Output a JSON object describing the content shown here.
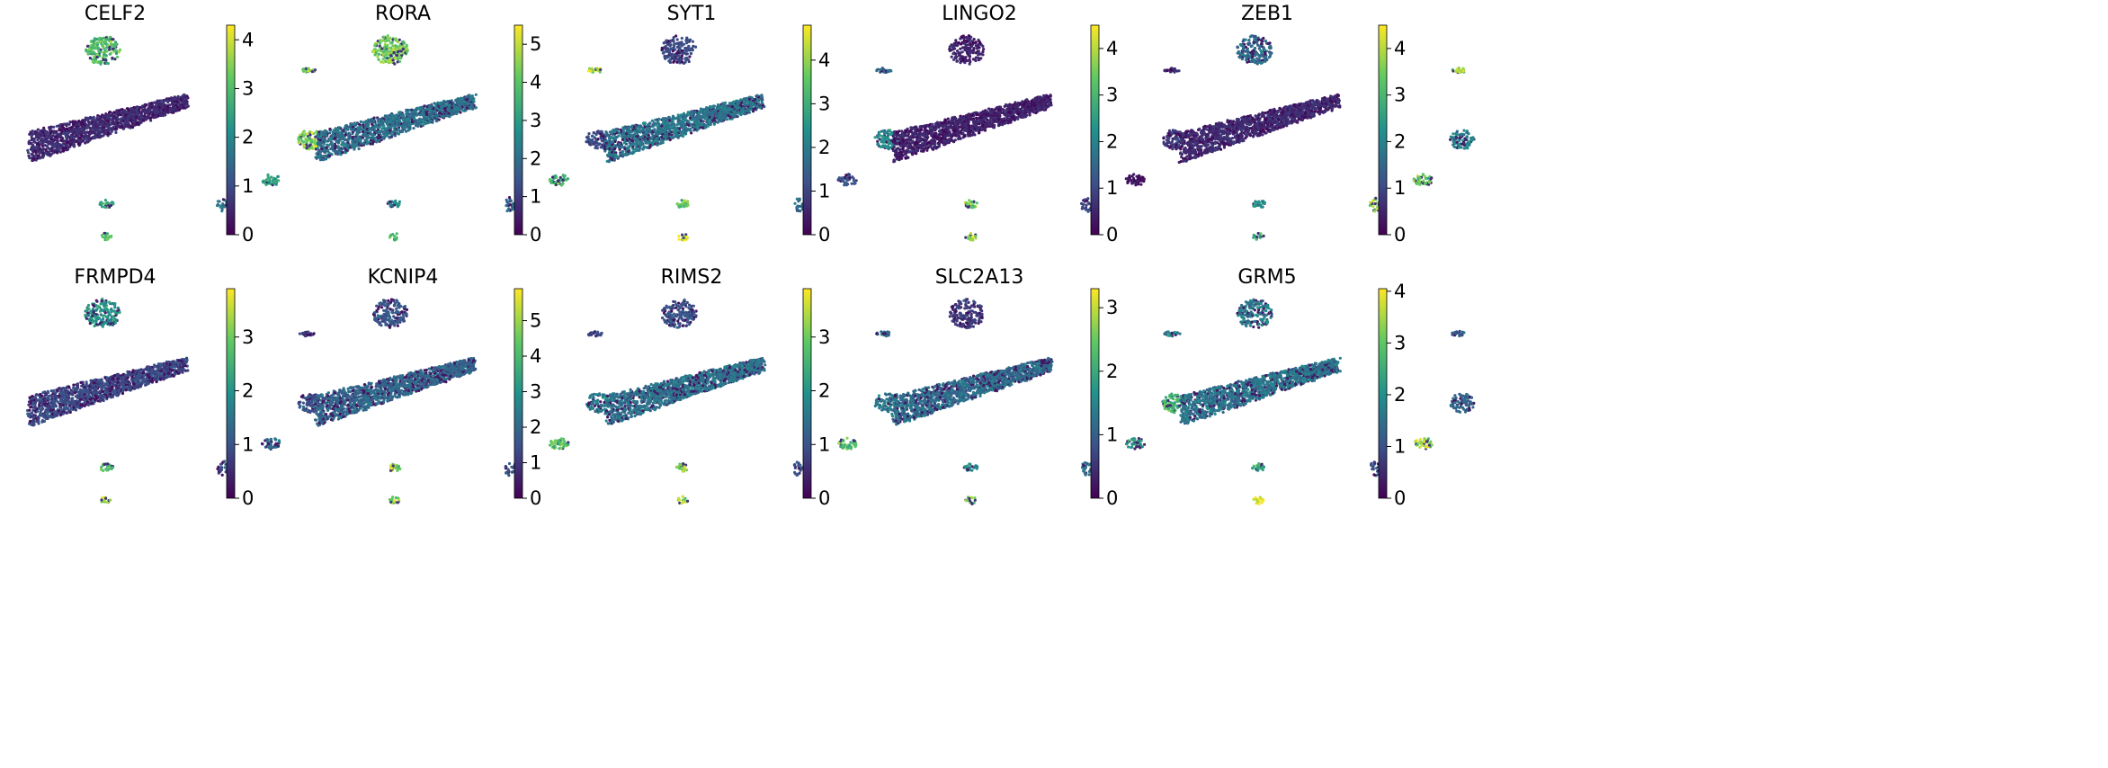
{
  "chart_data": {
    "type": "scatter",
    "description_type": "umap-feature-plot",
    "colormap": "viridis",
    "colormap_stops": [
      "#440154",
      "#3b528b",
      "#21918c",
      "#5ec962",
      "#fde725"
    ],
    "panels": [
      {
        "title": "CELF2",
        "vmax": 4.3,
        "ticks": [
          0,
          1,
          2,
          3,
          4
        ],
        "clusters": {
          "main": 0.6,
          "top": 3.0,
          "right_small": 3.6,
          "right_mid": 3.4,
          "mid_right": 2.4,
          "left_pair": 2.6,
          "left_bottom": 3.0,
          "center_small": 1.6
        }
      },
      {
        "title": "RORA",
        "vmax": 5.5,
        "ticks": [
          0,
          1,
          2,
          3,
          4,
          5
        ],
        "clusters": {
          "main": 2.1,
          "top": 4.3,
          "right_small": 5.0,
          "right_mid": 1.3,
          "mid_right": 3.5,
          "left_pair": 2.5,
          "left_bottom": 4.0,
          "center_small": 1.8
        }
      },
      {
        "title": "SYT1",
        "vmax": 4.8,
        "ticks": [
          0,
          1,
          2,
          3,
          4
        ],
        "clusters": {
          "main": 1.9,
          "top": 1.1,
          "right_small": 1.6,
          "right_mid": 2.3,
          "mid_right": 1.2,
          "left_pair": 3.6,
          "left_bottom": 4.7,
          "center_small": 1.7
        }
      },
      {
        "title": "LINGO2",
        "vmax": 4.5,
        "ticks": [
          0,
          1,
          2,
          3,
          4
        ],
        "clusters": {
          "main": 0.5,
          "top": 0.5,
          "right_small": 0.6,
          "right_mid": 0.8,
          "mid_right": 0.4,
          "left_pair": 3.4,
          "left_bottom": 3.6,
          "center_small": 1.0
        }
      },
      {
        "title": "ZEB1",
        "vmax": 4.5,
        "ticks": [
          0,
          1,
          2,
          3,
          4
        ],
        "clusters": {
          "main": 0.6,
          "top": 1.6,
          "right_small": 3.8,
          "right_mid": 2.0,
          "mid_right": 3.4,
          "left_pair": 2.2,
          "left_bottom": 3.0,
          "center_small": 3.6
        }
      },
      {
        "title": "FRMPD4",
        "vmax": 3.9,
        "ticks": [
          0,
          1,
          2,
          3
        ],
        "clusters": {
          "main": 0.9,
          "top": 2.0,
          "right_small": 0.7,
          "right_mid": 1.0,
          "mid_right": 1.5,
          "left_pair": 2.8,
          "left_bottom": 3.6,
          "center_small": 1.0
        }
      },
      {
        "title": "KCNIP4",
        "vmax": 5.9,
        "ticks": [
          0,
          1,
          2,
          3,
          4,
          5
        ],
        "clusters": {
          "main": 2.0,
          "top": 1.6,
          "right_small": 1.3,
          "right_mid": 2.4,
          "mid_right": 4.3,
          "left_pair": 5.0,
          "left_bottom": 5.2,
          "center_small": 1.6
        }
      },
      {
        "title": "RIMS2",
        "vmax": 3.9,
        "ticks": [
          0,
          1,
          2,
          3
        ],
        "clusters": {
          "main": 1.5,
          "top": 1.0,
          "right_small": 1.4,
          "right_mid": 1.6,
          "mid_right": 2.8,
          "left_pair": 3.3,
          "left_bottom": 3.4,
          "center_small": 1.0
        }
      },
      {
        "title": "SLC2A13",
        "vmax": 3.3,
        "ticks": [
          0,
          1,
          2,
          3
        ],
        "clusters": {
          "main": 1.2,
          "top": 0.6,
          "right_small": 1.4,
          "right_mid": 2.2,
          "mid_right": 1.8,
          "left_pair": 1.5,
          "left_bottom": 2.6,
          "center_small": 1.2
        }
      },
      {
        "title": "GRM5",
        "vmax": 4.05,
        "ticks": [
          0,
          1,
          2,
          3,
          4
        ],
        "clusters": {
          "main": 1.6,
          "top": 1.7,
          "right_small": 1.2,
          "right_mid": 1.3,
          "mid_right": 3.4,
          "left_pair": 2.4,
          "left_bottom": 3.9,
          "center_small": 1.0
        }
      }
    ]
  }
}
